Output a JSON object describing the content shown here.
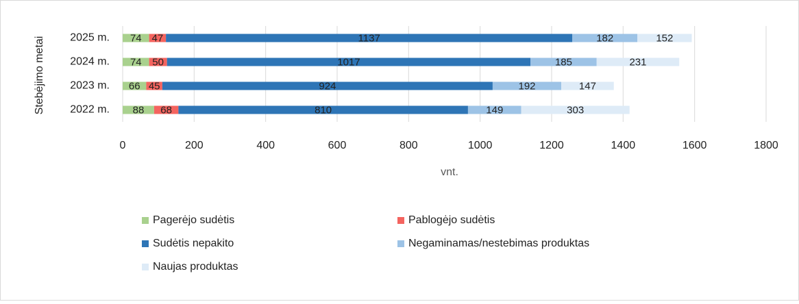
{
  "chart_data": {
    "type": "stacked-barh",
    "categories": [
      "2022 m.",
      "2023 m.",
      "2024 m.",
      "2025 m."
    ],
    "series": [
      {
        "name": "Pagerėjo sudėtis",
        "color": "#a9d18e",
        "values": [
          88,
          66,
          74,
          74
        ]
      },
      {
        "name": "Pablogėjo sudėtis",
        "color": "#f4645f",
        "values": [
          68,
          45,
          50,
          47
        ]
      },
      {
        "name": "Sudėtis nepakito",
        "color": "#2e75b6",
        "values": [
          810,
          924,
          1017,
          1137
        ]
      },
      {
        "name": "Negaminamas/nestebimas produktas",
        "color": "#9dc3e6",
        "values": [
          149,
          192,
          185,
          182
        ]
      },
      {
        "name": "Naujas produktas",
        "color": "#deebf7",
        "values": [
          303,
          147,
          231,
          152
        ]
      }
    ],
    "xlabel": "vnt.",
    "ylabel": "Stebėjimo metai",
    "xlim": [
      0,
      1800
    ],
    "xticks": [
      0,
      200,
      400,
      600,
      800,
      1000,
      1200,
      1400,
      1600,
      1800
    ],
    "grid": true,
    "legend": "bottom"
  }
}
